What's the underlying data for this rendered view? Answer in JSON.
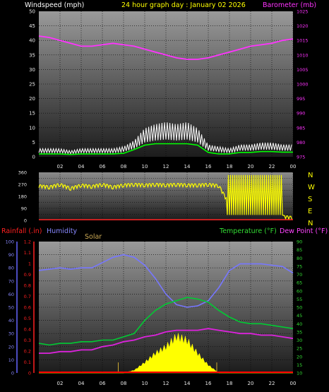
{
  "header": {
    "title": "24 hour graph day : January 02 2026",
    "left_label": "Windspeed (mph)",
    "right_label": "Barometer (mb)"
  },
  "lower_header": {
    "rainfall": "Rainfall (.in)",
    "humidity": "Humidity",
    "solar": "Solar",
    "temperature": "Temperature (°F)",
    "dewpoint": "Dew Point (°F)"
  },
  "compass": [
    "N",
    "W",
    "S",
    "E",
    "N"
  ],
  "colors": {
    "wind": "#ffffff",
    "gust_avg": "#00ff00",
    "barometer": "#ff33ff",
    "direction": "#ffff00",
    "rain": "#ff0000",
    "humidity": "#7777ff",
    "solar": "#ffff00",
    "temperature": "#00cc33",
    "dewpoint": "#dd22dd"
  },
  "x_ticks": [
    "02",
    "04",
    "06",
    "08",
    "10",
    "12",
    "14",
    "16",
    "18",
    "20",
    "22",
    "00"
  ],
  "chart_data": [
    {
      "type": "line",
      "name_ref": "wind-baro",
      "x_hours": [
        0,
        1,
        2,
        3,
        4,
        5,
        6,
        7,
        8,
        9,
        10,
        11,
        12,
        13,
        14,
        15,
        16,
        17,
        18,
        19,
        20,
        21,
        22,
        23,
        24
      ],
      "series": [
        {
          "name": "Windspeed (mph)",
          "axis": "left",
          "values": [
            2,
            2,
            2,
            1.5,
            2,
            2,
            2,
            2,
            2.5,
            4,
            7,
            8,
            8.5,
            8,
            8.5,
            7,
            3,
            2.5,
            2,
            3,
            3,
            3.5,
            3.5,
            3,
            3
          ]
        },
        {
          "name": "",
          "axis": "left",
          "values": [
            1,
            1,
            1,
            0.8,
            1,
            1,
            1,
            1,
            1.2,
            2.5,
            4,
            4.5,
            4.5,
            4.5,
            4.5,
            4,
            1.5,
            1,
            1,
            1.5,
            1.5,
            1.8,
            1.8,
            1.6,
            1.6
          ]
        },
        {
          "name": "Barometer (mb)",
          "axis": "right",
          "values": [
            1016.5,
            1016,
            1015,
            1014,
            1013,
            1013,
            1013.5,
            1014,
            1013.5,
            1013,
            1012,
            1011,
            1010,
            1009,
            1008.5,
            1008.5,
            1009,
            1010,
            1011,
            1012,
            1013,
            1013.5,
            1014,
            1015,
            1015.5
          ]
        }
      ],
      "ylim_left": [
        0,
        50
      ],
      "ylim_right": [
        975,
        1025
      ],
      "yticks_left": [
        0,
        5,
        10,
        15,
        20,
        25,
        30,
        35,
        40,
        45,
        50
      ],
      "yticks_right": [
        975,
        980,
        985,
        990,
        995,
        1000,
        1005,
        1010,
        1015,
        1020,
        1025
      ]
    },
    {
      "type": "line",
      "name_ref": "wind-direction",
      "x_hours": [
        0,
        1,
        2,
        3,
        4,
        5,
        6,
        7,
        8,
        9,
        10,
        11,
        12,
        13,
        14,
        15,
        16,
        17,
        18,
        19,
        20,
        21,
        22,
        23,
        24
      ],
      "series": [
        {
          "name": "Wind direction",
          "values": [
            260,
            250,
            270,
            240,
            265,
            255,
            270,
            250,
            265,
            270,
            265,
            270,
            265,
            270,
            265,
            265,
            270,
            260,
            120,
            200,
            150,
            180,
            140,
            30,
            20
          ]
        }
      ],
      "ylim": [
        0,
        360
      ],
      "yticks": [
        0,
        45,
        90,
        135,
        180,
        225,
        270,
        315,
        360
      ],
      "ytick_labels": [
        "0",
        "45",
        "90",
        "135",
        "180",
        "225",
        "270",
        "315",
        "360"
      ]
    },
    {
      "type": "line",
      "name_ref": "temp-hum-solar",
      "x_hours": [
        0,
        1,
        2,
        3,
        4,
        5,
        6,
        7,
        8,
        9,
        10,
        11,
        12,
        13,
        14,
        15,
        16,
        17,
        18,
        19,
        20,
        21,
        22,
        23,
        24
      ],
      "series": [
        {
          "name": "Humidity",
          "axis": "left-pct",
          "values": [
            78,
            79,
            80,
            79,
            80,
            80,
            84,
            88,
            90,
            88,
            82,
            72,
            60,
            52,
            50,
            51,
            55,
            65,
            78,
            83,
            83,
            83,
            82,
            81,
            76
          ]
        },
        {
          "name": "Temperature (°F)",
          "axis": "right",
          "values": [
            28,
            27,
            28,
            28,
            29,
            29,
            30,
            30,
            32,
            34,
            42,
            48,
            52,
            54,
            56,
            55,
            53,
            48,
            44,
            41,
            40,
            40,
            39,
            38,
            37
          ]
        },
        {
          "name": "Dew Point (°F)",
          "axis": "right",
          "values": [
            22,
            22,
            23,
            23,
            24,
            24,
            26,
            27,
            29,
            30,
            32,
            33,
            35,
            36,
            36,
            36,
            37,
            36,
            35,
            34,
            34,
            33,
            33,
            32,
            31
          ]
        },
        {
          "name": "Solar",
          "axis": "left-pct",
          "values": [
            0,
            0,
            0,
            0,
            0,
            0,
            0,
            0,
            0,
            2,
            8,
            15,
            20,
            28,
            25,
            15,
            6,
            0,
            0,
            0,
            0,
            0,
            0,
            0,
            0
          ]
        },
        {
          "name": "Rainfall (.in)",
          "axis": "left-in",
          "values": [
            0,
            0,
            0,
            0,
            0,
            0,
            0,
            0,
            0,
            0,
            0,
            0,
            0,
            0,
            0,
            0,
            0,
            0,
            0,
            0,
            0,
            0,
            0,
            0,
            0
          ]
        }
      ],
      "ylim_pct": [
        0,
        100
      ],
      "ylim_in": [
        0,
        1.2
      ],
      "ylim_right": [
        10,
        90
      ],
      "yticks_pct": [
        0,
        10,
        20,
        30,
        40,
        50,
        60,
        70,
        80,
        90,
        100
      ],
      "yticks_in": [
        "0",
        "0.1",
        "0.2",
        "0.3",
        "0.4",
        "0.5",
        "0.6",
        "0.7",
        "0.8",
        "0.9",
        "1",
        "1.1",
        "1.2"
      ],
      "yticks_right": [
        10,
        15,
        20,
        25,
        30,
        35,
        40,
        45,
        50,
        55,
        60,
        65,
        70,
        75,
        80,
        85,
        90
      ]
    }
  ]
}
